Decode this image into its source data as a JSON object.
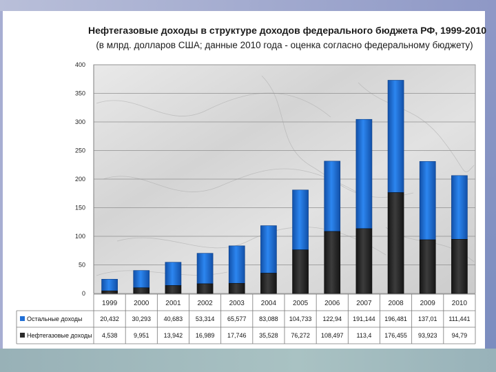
{
  "chart_data": {
    "type": "bar",
    "stacked": true,
    "title": "Нефтегазовые доходы в структуре доходов федерального бюджета РФ, 1999-2010",
    "subtitle": "(в млрд. долларов США; данные 2010 года - оценка согласно федеральному бюджету)",
    "categories": [
      "1999",
      "2000",
      "2001",
      "2002",
      "2003",
      "2004",
      "2005",
      "2006",
      "2007",
      "2008",
      "2009",
      "2010"
    ],
    "series": [
      {
        "name": "Нефтегазовые доходы",
        "color": "#2b2b2b",
        "values": [
          4.538,
          9.951,
          13.942,
          16.989,
          17.746,
          35.528,
          76.272,
          108.497,
          113.4,
          176.455,
          93.923,
          94.79
        ],
        "labels": [
          "4,538",
          "9,951",
          "13,942",
          "16,989",
          "17,746",
          "35,528",
          "76,272",
          "108,497",
          "113,4",
          "176,455",
          "93,923",
          "94,79"
        ]
      },
      {
        "name": "Остальные доходы",
        "color": "#1f6fd6",
        "values": [
          20.432,
          30.293,
          40.683,
          53.314,
          65.577,
          83.088,
          104.733,
          122.94,
          191.144,
          196.481,
          137.01,
          111.441
        ],
        "labels": [
          "20,432",
          "30,293",
          "40,683",
          "53,314",
          "65,577",
          "83,088",
          "104,733",
          "122,94",
          "191,144",
          "196,481",
          "137,01",
          "111,441"
        ]
      }
    ],
    "ylim": [
      0,
      400
    ],
    "yticks": [
      "0",
      "50",
      "100",
      "150",
      "200",
      "250",
      "300",
      "350",
      "400"
    ],
    "grid": true,
    "legend": "table-below"
  }
}
